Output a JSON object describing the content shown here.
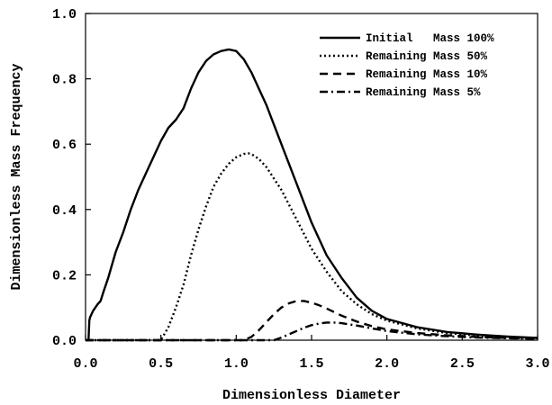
{
  "chart_data": {
    "type": "line",
    "xlabel": "Dimensionless Diameter",
    "ylabel": "Dimensionless Mass Frequency",
    "xlim": [
      0.0,
      3.0
    ],
    "ylim": [
      0.0,
      1.0
    ],
    "x_ticks": [
      "0.0",
      "0.5",
      "1.0",
      "1.5",
      "2.0",
      "2.5",
      "3.0"
    ],
    "y_ticks": [
      "0.0",
      "0.2",
      "0.4",
      "0.6",
      "0.8",
      "1.0"
    ],
    "grid": false,
    "legend_position": "top-right",
    "series": [
      {
        "name": "Initial   Mass 100%",
        "style": "solid",
        "color": "#000000",
        "x": [
          0.0,
          0.02,
          0.025,
          0.03,
          0.05,
          0.08,
          0.1,
          0.12,
          0.15,
          0.2,
          0.25,
          0.3,
          0.35,
          0.4,
          0.45,
          0.5,
          0.55,
          0.6,
          0.65,
          0.7,
          0.75,
          0.8,
          0.85,
          0.9,
          0.95,
          1.0,
          1.05,
          1.1,
          1.2,
          1.3,
          1.4,
          1.5,
          1.6,
          1.7,
          1.8,
          1.9,
          2.0,
          2.2,
          2.4,
          2.6,
          2.8,
          3.0
        ],
        "y": [
          0.0,
          0.0,
          0.06,
          0.07,
          0.09,
          0.11,
          0.12,
          0.15,
          0.19,
          0.27,
          0.33,
          0.4,
          0.46,
          0.51,
          0.56,
          0.61,
          0.65,
          0.675,
          0.71,
          0.77,
          0.82,
          0.855,
          0.875,
          0.885,
          0.89,
          0.885,
          0.86,
          0.82,
          0.72,
          0.6,
          0.48,
          0.36,
          0.26,
          0.19,
          0.13,
          0.09,
          0.065,
          0.04,
          0.025,
          0.017,
          0.011,
          0.007
        ]
      },
      {
        "name": "Remaining Mass 50%",
        "style": "dotted",
        "color": "#000000",
        "x": [
          0.0,
          0.5,
          0.55,
          0.6,
          0.65,
          0.7,
          0.75,
          0.8,
          0.85,
          0.9,
          0.95,
          1.0,
          1.05,
          1.08,
          1.1,
          1.15,
          1.2,
          1.3,
          1.4,
          1.5,
          1.6,
          1.7,
          1.8,
          1.9,
          2.0,
          2.2,
          2.4,
          2.6,
          2.8,
          3.0
        ],
        "y": [
          0.0,
          0.0,
          0.04,
          0.1,
          0.17,
          0.26,
          0.34,
          0.41,
          0.47,
          0.51,
          0.54,
          0.56,
          0.57,
          0.572,
          0.57,
          0.555,
          0.53,
          0.46,
          0.37,
          0.28,
          0.21,
          0.15,
          0.11,
          0.08,
          0.06,
          0.036,
          0.022,
          0.014,
          0.009,
          0.006
        ]
      },
      {
        "name": "Remaining Mass 10%",
        "style": "dashed",
        "color": "#000000",
        "x": [
          0.0,
          1.05,
          1.1,
          1.15,
          1.2,
          1.25,
          1.3,
          1.35,
          1.4,
          1.45,
          1.5,
          1.55,
          1.6,
          1.7,
          1.8,
          1.9,
          2.0,
          2.2,
          2.4,
          2.6,
          2.8,
          3.0
        ],
        "y": [
          0.0,
          0.0,
          0.01,
          0.03,
          0.055,
          0.08,
          0.1,
          0.113,
          0.12,
          0.12,
          0.115,
          0.107,
          0.097,
          0.075,
          0.057,
          0.043,
          0.033,
          0.022,
          0.015,
          0.01,
          0.007,
          0.005
        ]
      },
      {
        "name": "Remaining Mass 5%",
        "style": "dashdot",
        "color": "#000000",
        "x": [
          0.0,
          1.25,
          1.3,
          1.35,
          1.4,
          1.45,
          1.5,
          1.55,
          1.6,
          1.65,
          1.7,
          1.8,
          1.9,
          2.0,
          2.2,
          2.4,
          2.6,
          2.8,
          3.0
        ],
        "y": [
          0.0,
          0.0,
          0.008,
          0.018,
          0.028,
          0.038,
          0.046,
          0.051,
          0.054,
          0.054,
          0.052,
          0.045,
          0.036,
          0.028,
          0.018,
          0.012,
          0.008,
          0.006,
          0.004
        ]
      }
    ]
  }
}
